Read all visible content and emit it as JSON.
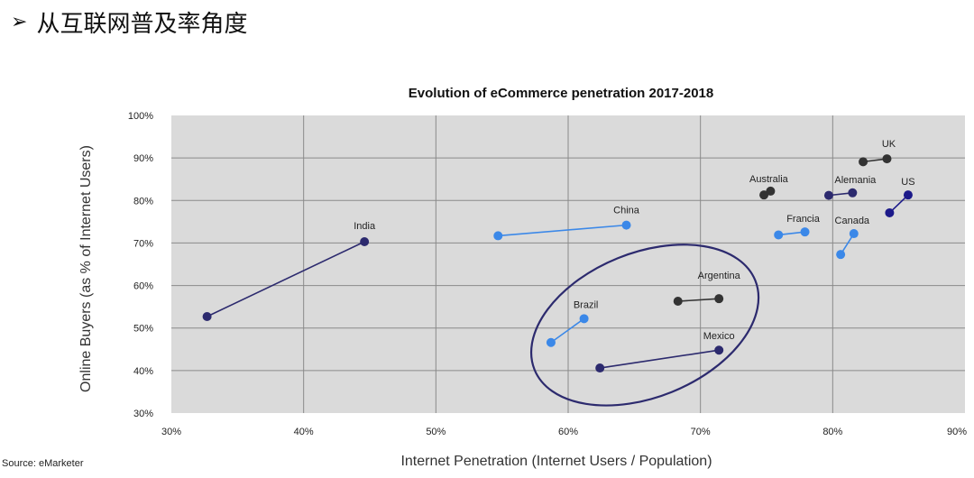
{
  "heading": {
    "bullet": "➢",
    "text": "从互联网普及率角度"
  },
  "source": "Source: eMarketer",
  "chart_data": {
    "type": "scatter",
    "title": "Evolution of eCommerce penetration 2017-2018",
    "xlabel": "Internet Penetration (Internet Users / Population)",
    "ylabel": "Online Buyers (as % of Internet Users)",
    "xlim": [
      30,
      90
    ],
    "ylim": [
      30,
      100
    ],
    "xticks": [
      "30%",
      "40%",
      "50%",
      "60%",
      "70%",
      "80%",
      "90%"
    ],
    "yticks": [
      "30%",
      "40%",
      "50%",
      "60%",
      "70%",
      "80%",
      "90%",
      "100%"
    ],
    "grid": true,
    "series": [
      {
        "name": "India",
        "color": "#2c2a6e",
        "x": [
          32.7,
          44.6
        ],
        "y": [
          52.7,
          70.3
        ]
      },
      {
        "name": "China",
        "color": "#3b88e8",
        "x": [
          54.7,
          64.4
        ],
        "y": [
          71.7,
          74.2
        ]
      },
      {
        "name": "Brazil",
        "color": "#3b88e8",
        "x": [
          58.7,
          61.2
        ],
        "y": [
          46.6,
          52.2
        ]
      },
      {
        "name": "Mexico",
        "color": "#2c2a6e",
        "x": [
          62.4,
          71.4
        ],
        "y": [
          40.6,
          44.8
        ]
      },
      {
        "name": "Argentina",
        "color": "#333333",
        "x": [
          68.3,
          71.4
        ],
        "y": [
          56.3,
          56.9
        ]
      },
      {
        "name": "Australia",
        "color": "#333333",
        "x": [
          74.8,
          75.3
        ],
        "y": [
          81.3,
          82.2
        ]
      },
      {
        "name": "Francia",
        "color": "#3b88e8",
        "x": [
          75.9,
          77.9
        ],
        "y": [
          71.9,
          72.6
        ]
      },
      {
        "name": "Alemania",
        "color": "#2c2a6e",
        "x": [
          79.7,
          81.5
        ],
        "y": [
          81.2,
          81.8
        ]
      },
      {
        "name": "Canada",
        "color": "#3b88e8",
        "x": [
          80.6,
          81.6
        ],
        "y": [
          67.3,
          72.2
        ]
      },
      {
        "name": "UK",
        "color": "#333333",
        "x": [
          82.3,
          84.1
        ],
        "y": [
          89.1,
          89.8
        ]
      },
      {
        "name": "US",
        "color": "#1c1a8a",
        "x": [
          84.3,
          85.7
        ],
        "y": [
          77.1,
          81.3
        ]
      }
    ],
    "annotations": [
      {
        "type": "ellipse",
        "center": [
          65.8,
          50.7
        ],
        "color": "#2c2a6e"
      }
    ]
  }
}
